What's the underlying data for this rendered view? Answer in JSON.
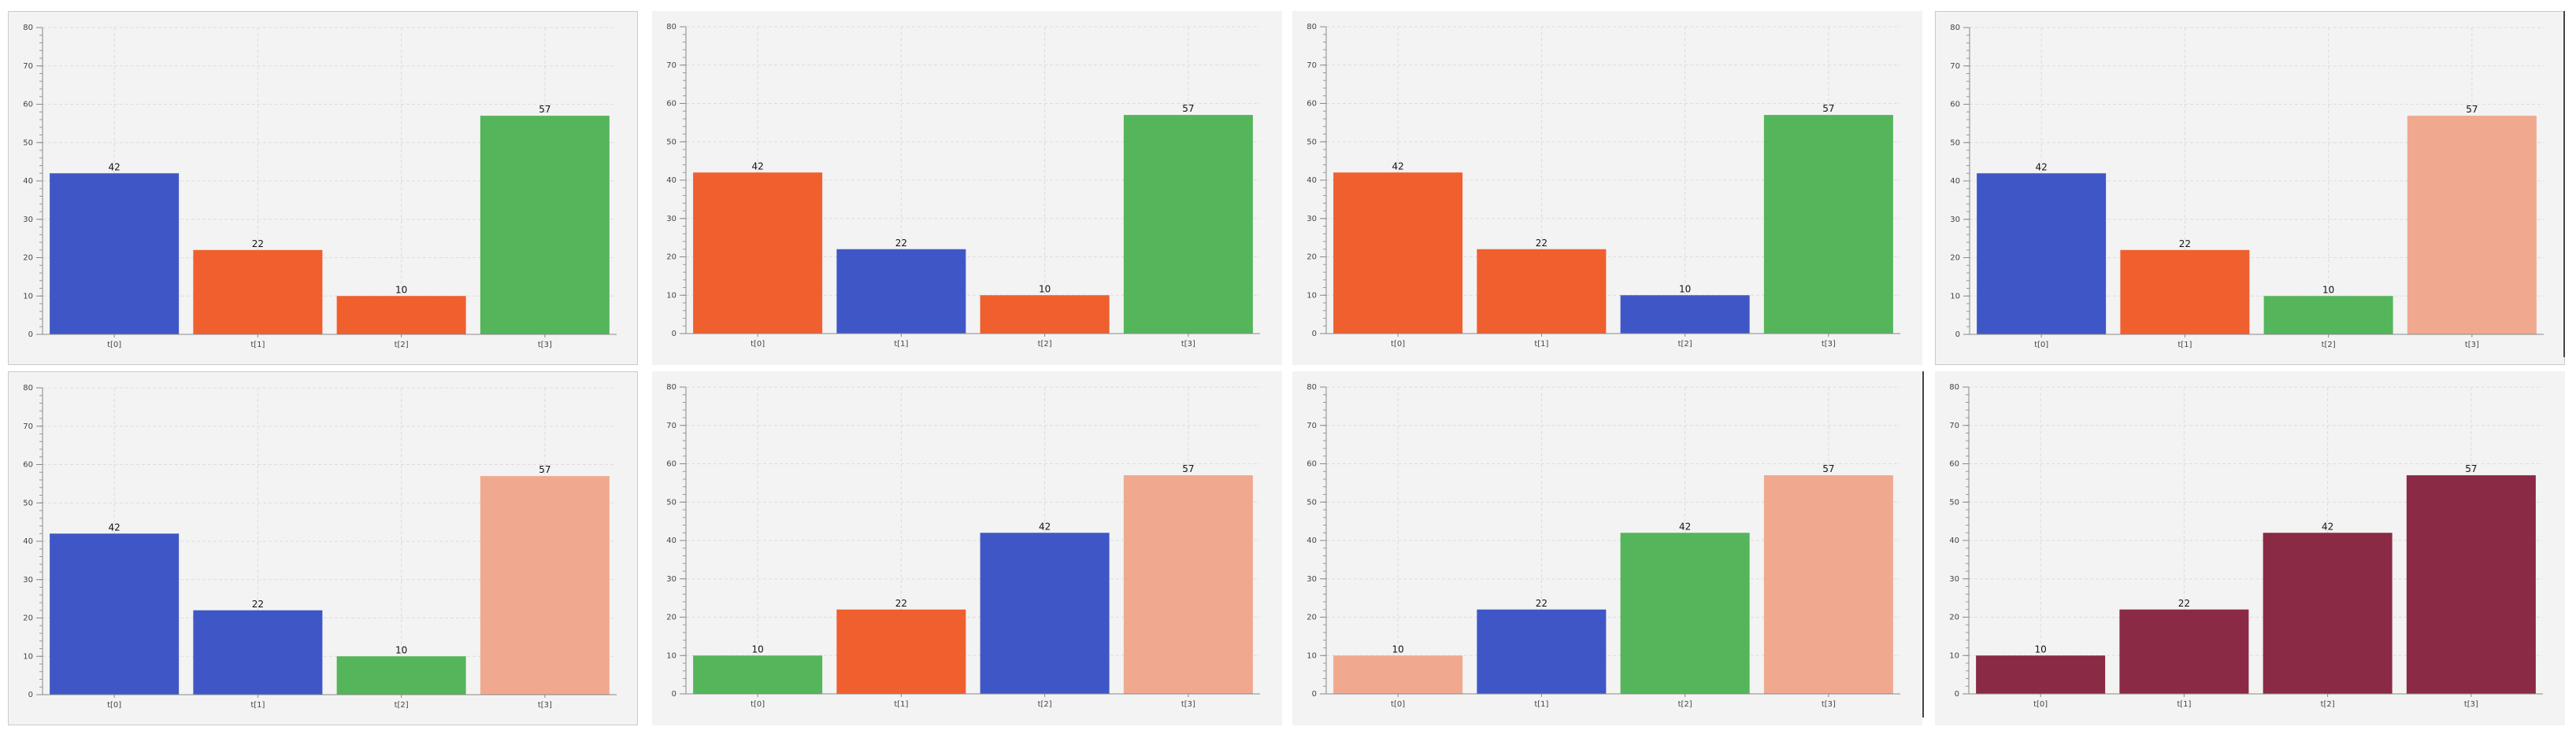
{
  "colors": {
    "blue": "#3f57c6",
    "orange": "#f05f2e",
    "green": "#55b55a",
    "salmon": "#f0a98f",
    "maroon": "#8a2a45"
  },
  "chart_data": [
    {
      "type": "bar",
      "categories": [
        "t[0]",
        "t[1]",
        "t[2]",
        "t[3]"
      ],
      "values": [
        42,
        22,
        10,
        57
      ],
      "bar_colors": [
        "blue",
        "orange",
        "orange",
        "green"
      ],
      "ylim": [
        0,
        80
      ],
      "yticks": [
        0,
        10,
        20,
        30,
        40,
        50,
        60,
        70,
        80
      ]
    },
    {
      "type": "bar",
      "categories": [
        "t[0]",
        "t[1]",
        "t[2]",
        "t[3]"
      ],
      "values": [
        42,
        22,
        10,
        57
      ],
      "bar_colors": [
        "orange",
        "blue",
        "orange",
        "green"
      ],
      "ylim": [
        0,
        80
      ],
      "yticks": [
        0,
        10,
        20,
        30,
        40,
        50,
        60,
        70,
        80
      ]
    },
    {
      "type": "bar",
      "categories": [
        "t[0]",
        "t[1]",
        "t[2]",
        "t[3]"
      ],
      "values": [
        42,
        22,
        10,
        57
      ],
      "bar_colors": [
        "orange",
        "orange",
        "blue",
        "green"
      ],
      "ylim": [
        0,
        80
      ],
      "yticks": [
        0,
        10,
        20,
        30,
        40,
        50,
        60,
        70,
        80
      ]
    },
    {
      "type": "bar",
      "categories": [
        "t[0]",
        "t[1]",
        "t[2]",
        "t[3]"
      ],
      "values": [
        42,
        22,
        10,
        57
      ],
      "bar_colors": [
        "blue",
        "orange",
        "green",
        "salmon"
      ],
      "ylim": [
        0,
        80
      ],
      "yticks": [
        0,
        10,
        20,
        30,
        40,
        50,
        60,
        70,
        80
      ]
    },
    {
      "type": "bar",
      "categories": [
        "t[0]",
        "t[1]",
        "t[2]",
        "t[3]"
      ],
      "values": [
        42,
        22,
        10,
        57
      ],
      "bar_colors": [
        "blue",
        "blue",
        "green",
        "salmon"
      ],
      "ylim": [
        0,
        80
      ],
      "yticks": [
        0,
        10,
        20,
        30,
        40,
        50,
        60,
        70,
        80
      ]
    },
    {
      "type": "bar",
      "categories": [
        "t[0]",
        "t[1]",
        "t[2]",
        "t[3]"
      ],
      "values": [
        10,
        22,
        42,
        57
      ],
      "bar_colors": [
        "green",
        "orange",
        "blue",
        "salmon"
      ],
      "ylim": [
        0,
        80
      ],
      "yticks": [
        0,
        10,
        20,
        30,
        40,
        50,
        60,
        70,
        80
      ]
    },
    {
      "type": "bar",
      "categories": [
        "t[0]",
        "t[1]",
        "t[2]",
        "t[3]"
      ],
      "values": [
        10,
        22,
        42,
        57
      ],
      "bar_colors": [
        "salmon",
        "blue",
        "green",
        "salmon"
      ],
      "ylim": [
        0,
        80
      ],
      "yticks": [
        0,
        10,
        20,
        30,
        40,
        50,
        60,
        70,
        80
      ]
    },
    {
      "type": "bar",
      "categories": [
        "t[0]",
        "t[1]",
        "t[2]",
        "t[3]"
      ],
      "values": [
        10,
        22,
        42,
        57
      ],
      "bar_colors": [
        "maroon",
        "maroon",
        "maroon",
        "maroon"
      ],
      "ylim": [
        0,
        80
      ],
      "yticks": [
        0,
        10,
        20,
        30,
        40,
        50,
        60,
        70,
        80
      ]
    }
  ]
}
